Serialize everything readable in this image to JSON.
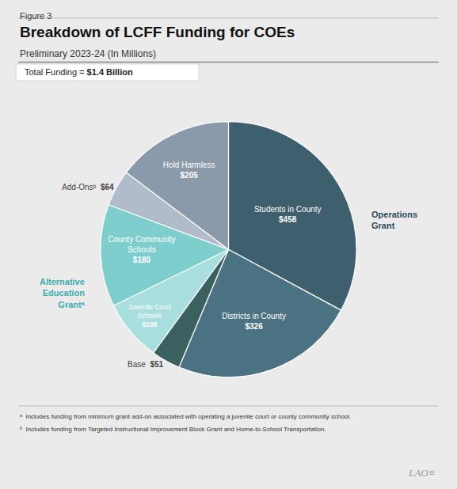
{
  "chart_data": {
    "type": "pie",
    "title": "Breakdown of LCFF Funding for COEs",
    "subtitle": "Preliminary 2023-24 (In Millions)",
    "categories": [
      "Students in County",
      "Districts in County",
      "Base",
      "Juvenile Court\nSchools",
      "County Community\nSchools",
      "Add-Onsᵇ",
      "Hold Harmless"
    ],
    "values": [
      458,
      326,
      51,
      108,
      180,
      64,
      205
    ],
    "value_labels": [
      "$458",
      "$326",
      "$51",
      "$108",
      "$180",
      "$64",
      "$205"
    ],
    "colors": [
      "#3d5f6e",
      "#4a7282",
      "#3a6060",
      "#a8dede",
      "#7ecece",
      "#b0bcca",
      "#8a9aaa"
    ],
    "data_labels": true,
    "annotations": [
      {
        "text": "Figure 3"
      },
      {
        "text": "Total Funding = "
      },
      {
        "text": "$1.4 Billion"
      },
      {
        "text": "Operations\nGrant",
        "color": "#2c4a5a"
      },
      {
        "text": "Alternative\nEducation\nGrantᵃ",
        "color": "#3aaeae"
      },
      {
        "text": "ᵃ  Includes funding from minimum grant add-on associated with operating a juvenile court or county community school."
      },
      {
        "text": "ᵇ  Includes funding from Targeted Instructional Improvement Block Grant and Home-to-School Transportation."
      },
      {
        "text": "LAO≡"
      }
    ]
  }
}
